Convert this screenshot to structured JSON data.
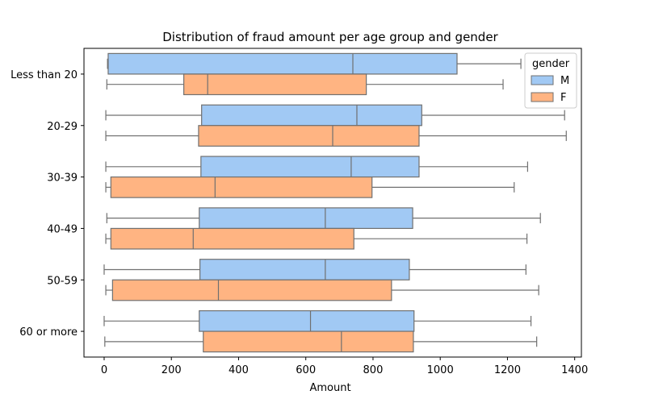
{
  "chart_data": {
    "type": "boxplot",
    "orientation": "horizontal",
    "title": "Distribution of fraud amount per age group and gender",
    "xlabel": "Amount",
    "ylabel": "",
    "xlim": [
      -60,
      1420
    ],
    "xticks": [
      0,
      200,
      400,
      600,
      800,
      1000,
      1200,
      1400
    ],
    "grid": false,
    "categories": [
      "Less than 20",
      "20-29",
      "30-39",
      "40-49",
      "50-59",
      "60 or more"
    ],
    "legend": {
      "title": "gender",
      "position": "top-right"
    },
    "series": [
      {
        "name": "M",
        "color": "#a1c9f4",
        "boxes": [
          {
            "whislo": 10,
            "q1": 12,
            "med": 740,
            "q3": 1050,
            "whishi": 1240
          },
          {
            "whislo": 5,
            "q1": 290,
            "med": 752,
            "q3": 945,
            "whishi": 1370
          },
          {
            "whislo": 5,
            "q1": 288,
            "med": 735,
            "q3": 937,
            "whishi": 1260
          },
          {
            "whislo": 8,
            "q1": 283,
            "med": 658,
            "q3": 918,
            "whishi": 1298
          },
          {
            "whislo": 0,
            "q1": 285,
            "med": 658,
            "q3": 908,
            "whishi": 1255
          },
          {
            "whislo": 0,
            "q1": 283,
            "med": 614,
            "q3": 922,
            "whishi": 1270
          }
        ]
      },
      {
        "name": "F",
        "color": "#ffb482",
        "boxes": [
          {
            "whislo": 8,
            "q1": 237,
            "med": 308,
            "q3": 780,
            "whishi": 1187
          },
          {
            "whislo": 5,
            "q1": 281,
            "med": 680,
            "q3": 937,
            "whishi": 1375
          },
          {
            "whislo": 5,
            "q1": 20,
            "med": 330,
            "q3": 797,
            "whishi": 1220
          },
          {
            "whislo": 5,
            "q1": 20,
            "med": 265,
            "q3": 743,
            "whishi": 1258
          },
          {
            "whislo": 5,
            "q1": 25,
            "med": 340,
            "q3": 855,
            "whishi": 1293
          },
          {
            "whislo": 2,
            "q1": 295,
            "med": 706,
            "q3": 920,
            "whishi": 1287
          }
        ]
      }
    ]
  }
}
